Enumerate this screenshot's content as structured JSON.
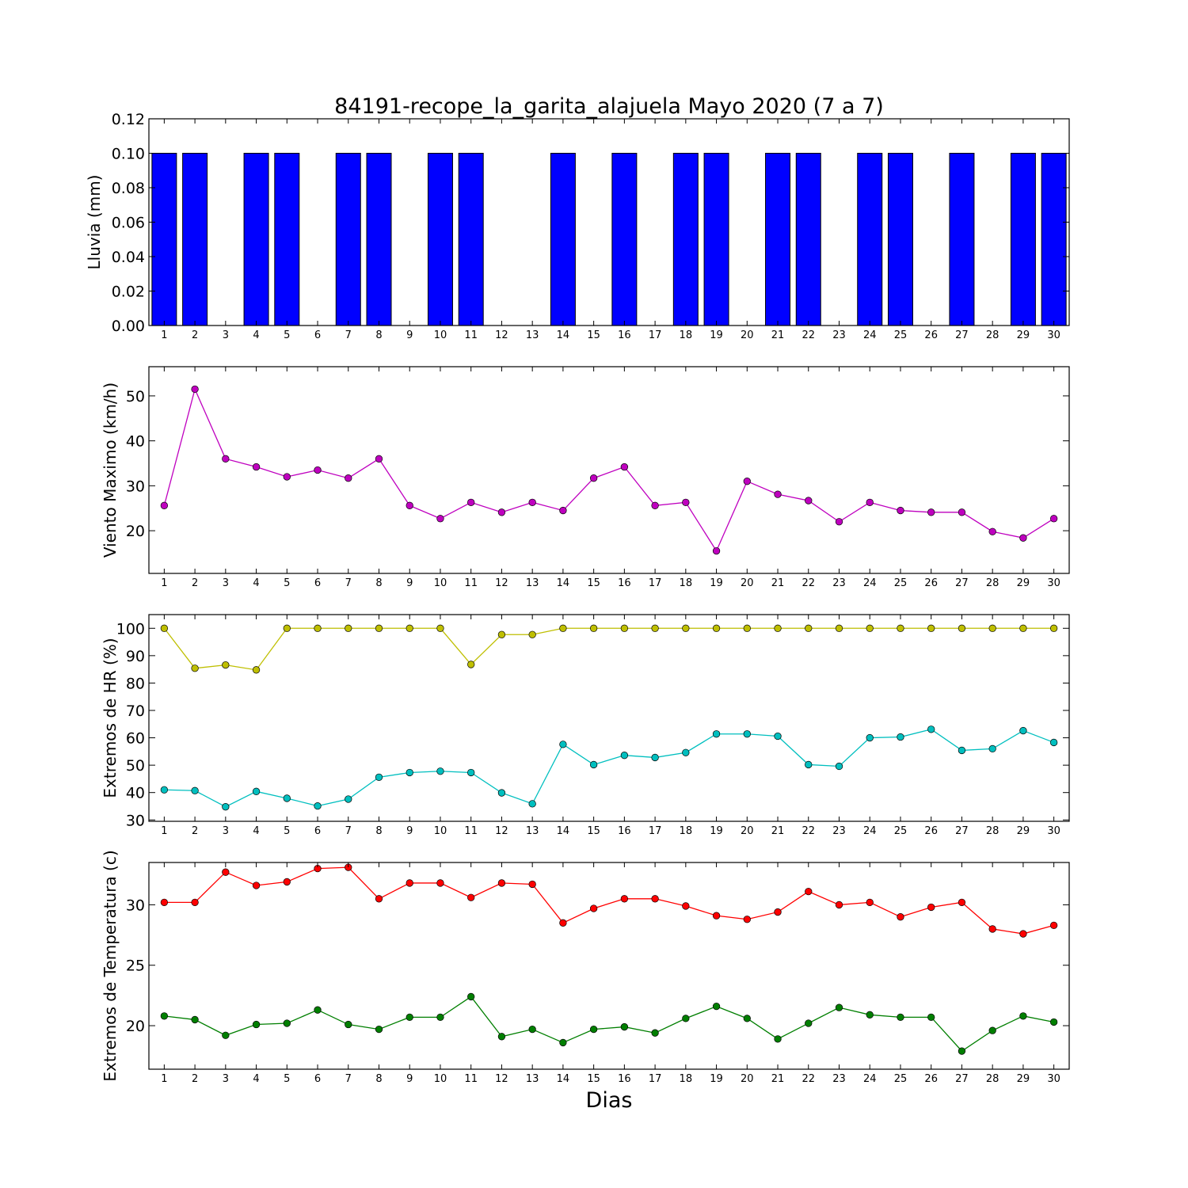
{
  "title": "84191-recope_la_garita_alajuela Mayo 2020  (7 a 7)",
  "xlabel": "Dias",
  "chart_data": [
    {
      "type": "bar",
      "ylabel": "Lluvia (mm)",
      "categories": [
        "1",
        "2",
        "3",
        "4",
        "5",
        "6",
        "7",
        "8",
        "9",
        "10",
        "11",
        "12",
        "13",
        "14",
        "15",
        "16",
        "17",
        "18",
        "19",
        "20",
        "21",
        "22",
        "23",
        "24",
        "25",
        "26",
        "27",
        "28",
        "29",
        "30"
      ],
      "ylim": [
        0.0,
        0.12
      ],
      "yticks": [
        0.0,
        0.02,
        0.04,
        0.06,
        0.08,
        0.1,
        0.12
      ],
      "ytick_decimals": 2,
      "series": [
        {
          "color": "#0000ff",
          "values": [
            0.1,
            0.1,
            0,
            0.1,
            0.1,
            0,
            0.1,
            0.1,
            0,
            0.1,
            0.1,
            0,
            0,
            0.1,
            0,
            0.1,
            0,
            0.1,
            0.1,
            0,
            0.1,
            0.1,
            0,
            0.1,
            0.1,
            0,
            0.1,
            0,
            0.1,
            0.1
          ]
        }
      ]
    },
    {
      "type": "line",
      "ylabel": "Viento Maximo (km/h)",
      "categories": [
        "1",
        "2",
        "3",
        "4",
        "5",
        "6",
        "7",
        "8",
        "9",
        "10",
        "11",
        "12",
        "13",
        "14",
        "15",
        "16",
        "17",
        "18",
        "19",
        "20",
        "21",
        "22",
        "23",
        "24",
        "25",
        "26",
        "27",
        "28",
        "29",
        "30"
      ],
      "ylim": [
        10.5,
        56.5
      ],
      "yticks": [
        20,
        30,
        40,
        50
      ],
      "ytick_decimals": 0,
      "series": [
        {
          "color": "#bf00bf",
          "values": [
            25.6,
            51.5,
            36.0,
            34.2,
            32.0,
            33.5,
            31.7,
            36.0,
            25.6,
            22.7,
            26.3,
            24.1,
            26.3,
            24.5,
            31.7,
            34.2,
            25.6,
            26.3,
            15.5,
            31.0,
            28.1,
            26.7,
            22.0,
            26.3,
            24.5,
            24.1,
            24.1,
            19.8,
            18.4,
            22.7
          ]
        }
      ]
    },
    {
      "type": "line",
      "ylabel": "Extremos de HR (%)",
      "categories": [
        "1",
        "2",
        "3",
        "4",
        "5",
        "6",
        "7",
        "8",
        "9",
        "10",
        "11",
        "12",
        "13",
        "14",
        "15",
        "16",
        "17",
        "18",
        "19",
        "20",
        "21",
        "22",
        "23",
        "24",
        "25",
        "26",
        "27",
        "28",
        "29",
        "30"
      ],
      "ylim": [
        29.5,
        105
      ],
      "yticks": [
        30,
        40,
        50,
        60,
        70,
        80,
        90,
        100
      ],
      "ytick_decimals": 0,
      "series": [
        {
          "color": "#bfbf00",
          "values": [
            100,
            85.4,
            86.6,
            84.8,
            100,
            100,
            100,
            100,
            100,
            100,
            86.8,
            97.7,
            97.7,
            100,
            100,
            100,
            100,
            100,
            100,
            100,
            100,
            100,
            100,
            100,
            100,
            100,
            100,
            100,
            100,
            100
          ]
        },
        {
          "color": "#00bfbf",
          "values": [
            41.0,
            40.7,
            34.8,
            40.4,
            37.9,
            35.1,
            37.6,
            45.6,
            47.3,
            47.8,
            47.3,
            39.9,
            35.9,
            57.6,
            50.2,
            53.6,
            52.8,
            54.6,
            61.4,
            61.4,
            60.6,
            50.2,
            49.6,
            60.0,
            60.3,
            63.1,
            55.4,
            56.0,
            62.6,
            58.3
          ]
        }
      ]
    },
    {
      "type": "line",
      "ylabel": "Extremos de Temperatura (c)",
      "categories": [
        "1",
        "2",
        "3",
        "4",
        "5",
        "6",
        "7",
        "8",
        "9",
        "10",
        "11",
        "12",
        "13",
        "14",
        "15",
        "16",
        "17",
        "18",
        "19",
        "20",
        "21",
        "22",
        "23",
        "24",
        "25",
        "26",
        "27",
        "28",
        "29",
        "30"
      ],
      "ylim": [
        16.4,
        33.5
      ],
      "yticks": [
        20,
        25,
        30
      ],
      "ytick_decimals": 0,
      "series": [
        {
          "color": "#ff0000",
          "values": [
            30.2,
            30.2,
            32.7,
            31.6,
            31.9,
            33.0,
            33.1,
            30.5,
            31.8,
            31.8,
            30.6,
            31.8,
            31.7,
            28.5,
            29.7,
            30.5,
            30.5,
            29.9,
            29.1,
            28.8,
            29.4,
            31.1,
            30.0,
            30.2,
            29.0,
            29.8,
            30.2,
            28.0,
            27.6,
            28.3
          ]
        },
        {
          "color": "#007f00",
          "values": [
            20.8,
            20.5,
            19.2,
            20.1,
            20.2,
            21.3,
            20.1,
            19.7,
            20.7,
            20.7,
            22.4,
            19.1,
            19.7,
            18.6,
            19.7,
            19.9,
            19.4,
            20.6,
            21.6,
            20.6,
            18.9,
            20.2,
            21.5,
            20.9,
            20.7,
            20.7,
            17.9,
            19.6,
            20.8,
            20.3
          ]
        }
      ]
    }
  ]
}
